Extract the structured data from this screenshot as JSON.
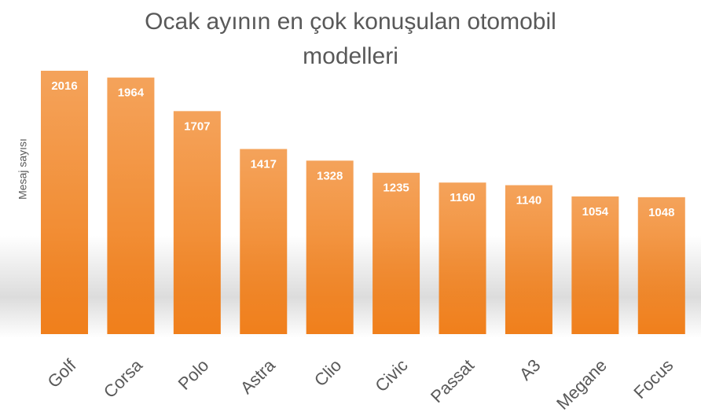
{
  "chart_data": {
    "type": "bar",
    "title": "Ocak ayının en çok konuşulan otomobil modelleri",
    "y_label": "Mesaj sayısı",
    "categories": [
      "Golf",
      "Corsa",
      "Polo",
      "Astra",
      "Clio",
      "Civic",
      "Passat",
      "A3",
      "Megane",
      "Focus"
    ],
    "values": [
      2016,
      1964,
      1707,
      1417,
      1328,
      1235,
      1160,
      1140,
      1054,
      1048
    ],
    "color": "#f07f1b",
    "ylim": [
      0,
      2016
    ]
  }
}
